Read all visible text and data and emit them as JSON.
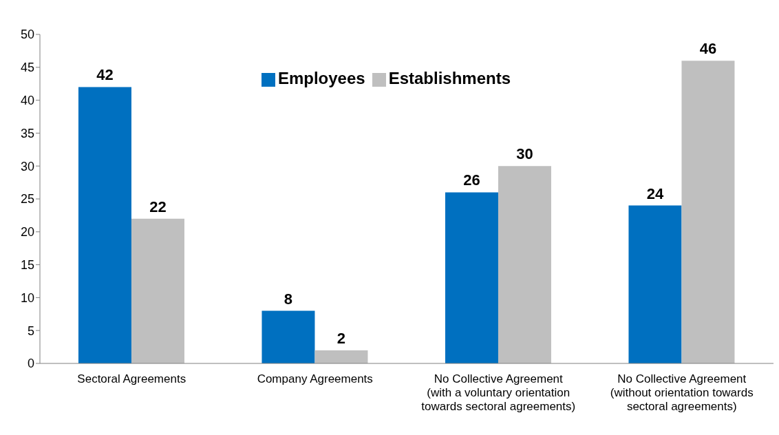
{
  "chart_data": {
    "type": "bar",
    "categories": [
      "Sectoral Agreements",
      "Company Agreements",
      "No Collective Agreement (with a voluntary orientation towards sectoral agreements)",
      "No Collective Agreement (without orientation towards sectoral agreements)"
    ],
    "series": [
      {
        "name": "Employees",
        "color": "#0070c0",
        "values": [
          42,
          8,
          26,
          24
        ]
      },
      {
        "name": "Establishments",
        "color": "#bfbfbf",
        "values": [
          22,
          2,
          30,
          46
        ]
      }
    ],
    "ylim": [
      0,
      50
    ],
    "yticks": [
      0,
      5,
      10,
      15,
      20,
      25,
      30,
      35,
      40,
      45,
      50
    ],
    "grid": false,
    "legend": "top",
    "data_labels": true
  }
}
